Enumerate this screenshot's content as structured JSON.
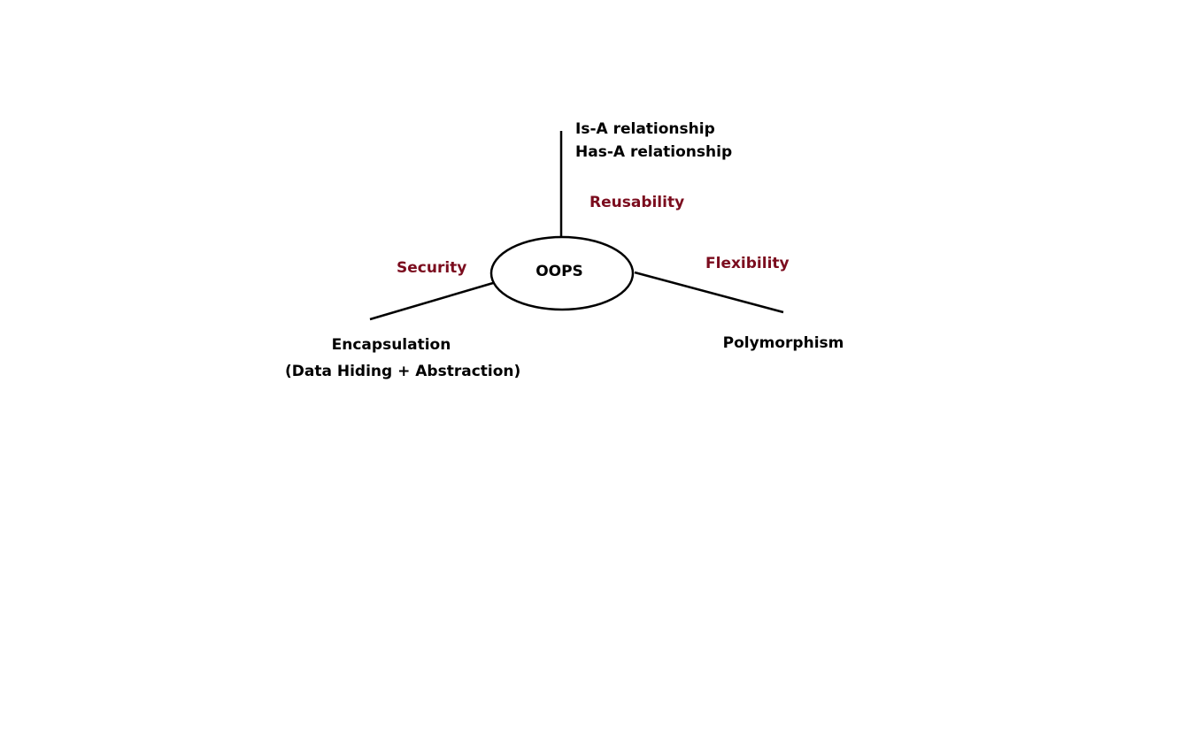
{
  "colors": {
    "line": "#000000",
    "text": "#000000",
    "accent": "#7b0c1e",
    "background": "#ffffff"
  },
  "diagram": {
    "center": {
      "label": "OOPS"
    },
    "top_branch": {
      "items": [
        "Is-A relationship",
        "Has-A relationship"
      ],
      "benefit": "Reusability"
    },
    "left_branch": {
      "item": "Encapsulation",
      "detail": "(Data Hiding + Abstraction)",
      "benefit": "Security"
    },
    "right_branch": {
      "item": "Polymorphism",
      "benefit": "Flexibility"
    }
  }
}
